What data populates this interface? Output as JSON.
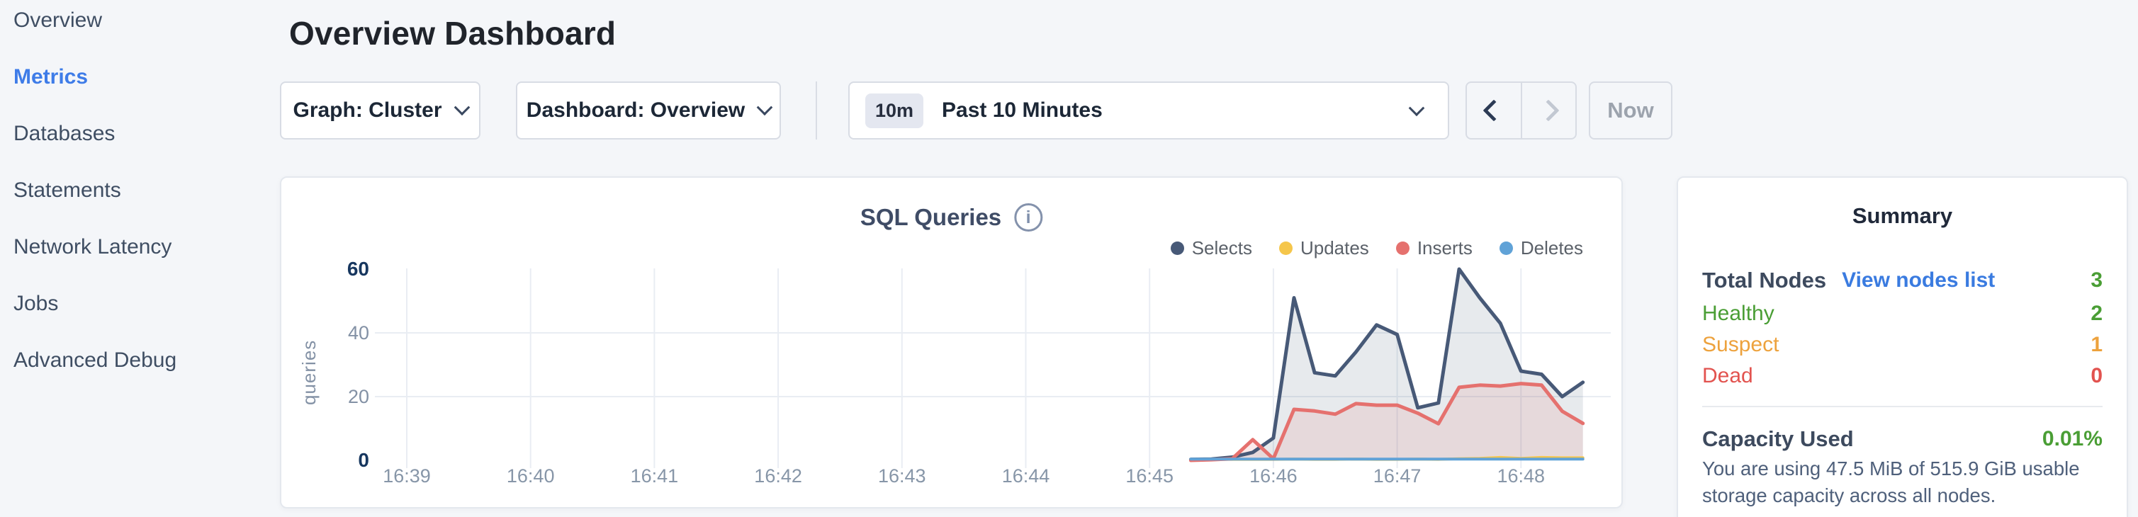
{
  "colors": {
    "page_bg": "#f4f6f9",
    "card_bg": "#ffffff",
    "card_border": "#e4e8ee",
    "accent_blue": "#3e7ce8",
    "link_blue": "#3a7be0",
    "green": "#4a9e35",
    "orange": "#eda23d",
    "red": "#e2534f",
    "text_dark": "#20242b",
    "text_slate": "#3f4e63",
    "text_gray": "#8796a8",
    "selects_color": "#475977",
    "updates_color": "#f5c64b",
    "inserts_color": "#e5716e",
    "deletes_color": "#60a2d7"
  },
  "sidebar": {
    "active": "Metrics",
    "items": [
      {
        "label": "Overview"
      },
      {
        "label": "Metrics"
      },
      {
        "label": "Databases"
      },
      {
        "label": "Statements"
      },
      {
        "label": "Network Latency"
      },
      {
        "label": "Jobs"
      },
      {
        "label": "Advanced Debug"
      }
    ]
  },
  "header": {
    "title": "Overview Dashboard"
  },
  "toolbar": {
    "graph_dropdown_label": "Graph: Cluster",
    "dashboard_dropdown_label": "Dashboard: Overview",
    "time_badge": "10m",
    "time_label": "Past 10 Minutes",
    "now_label": "Now"
  },
  "chart_card": {
    "title": "SQL Queries",
    "info_icon": "i"
  },
  "chart_data": {
    "type": "area",
    "title": "SQL Queries",
    "ylabel": "queries",
    "ylim": [
      0,
      60
    ],
    "ytick_labels": [
      "0",
      "20",
      "40",
      "60"
    ],
    "x_ticks": [
      "16:39",
      "16:40",
      "16:41",
      "16:42",
      "16:43",
      "16:44",
      "16:45",
      "16:46",
      "16:47",
      "16:48"
    ],
    "x_start_time": "16:39:00",
    "grid": true,
    "legend_position": "top-right",
    "sample_start": "16:45:20",
    "sample_step_seconds": 10,
    "series": [
      {
        "name": "Selects",
        "color": "#475977",
        "fill": "rgba(71,89,119,0.13)",
        "values": [
          0.3,
          0.4,
          1,
          2.5,
          7,
          51,
          27.5,
          26.5,
          34,
          42.5,
          39.5,
          16.5,
          18,
          60,
          51,
          43,
          28,
          27,
          20,
          24.5
        ]
      },
      {
        "name": "Updates",
        "color": "#f5c64b",
        "fill": "none",
        "values": [
          0.3,
          0.3,
          0.3,
          0.3,
          0.3,
          0.4,
          0.3,
          0.3,
          0.4,
          0.3,
          0.3,
          0.4,
          0.3,
          0.5,
          0.6,
          0.9,
          0.6,
          0.9,
          0.8,
          0.8
        ]
      },
      {
        "name": "Inserts",
        "color": "#e5716e",
        "fill": "rgba(229,113,110,0.14)",
        "values": [
          0,
          0.2,
          0.5,
          6.5,
          0.5,
          16,
          15.5,
          14.5,
          17.8,
          17.3,
          17.3,
          14.8,
          11.5,
          22.9,
          23.6,
          23.3,
          24.1,
          23.6,
          15.4,
          11.6
        ]
      },
      {
        "name": "Deletes",
        "color": "#60a2d7",
        "fill": "none",
        "values": [
          0.4,
          0.4,
          0.4,
          0.4,
          0.4,
          0.4,
          0.4,
          0.4,
          0.4,
          0.4,
          0.4,
          0.4,
          0.4,
          0.4,
          0.4,
          0.4,
          0.4,
          0.4,
          0.4,
          0.4
        ]
      }
    ]
  },
  "summary": {
    "title": "Summary",
    "total_nodes_label": "Total Nodes",
    "view_nodes_link": "View nodes list",
    "total_nodes_value": "3",
    "rows": [
      {
        "label": "Healthy",
        "value": "2",
        "color": "#4a9e35"
      },
      {
        "label": "Suspect",
        "value": "1",
        "color": "#eda23d"
      },
      {
        "label": "Dead",
        "value": "0",
        "color": "#e2534f"
      }
    ],
    "capacity_label": "Capacity Used",
    "capacity_value": "0.01%",
    "capacity_description": "You are using 47.5 MiB of 515.9 GiB usable storage capacity across all nodes."
  }
}
